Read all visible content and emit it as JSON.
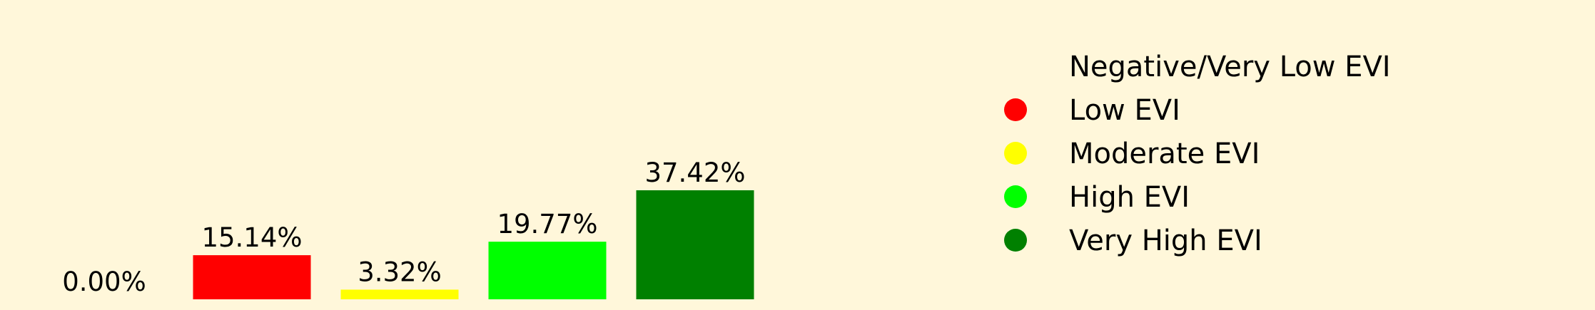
{
  "chart_data": {
    "type": "bar",
    "categories": [
      "Negative/Very Low EVI",
      "Low EVI",
      "Moderate EVI",
      "High EVI",
      "Very High EVI"
    ],
    "values": [
      0.0,
      15.14,
      3.32,
      19.77,
      37.42
    ],
    "data_labels": [
      "0.00%",
      "15.14%",
      "3.32%",
      "19.77%",
      "37.42%"
    ],
    "colors": [
      "#fff7da",
      "#ff0000",
      "#ffff00",
      "#00ff00",
      "#008000"
    ],
    "title": "",
    "xlabel": "",
    "ylabel": "",
    "ylim": [
      0,
      37.42
    ],
    "grid": false,
    "axes_visible": false,
    "legend": {
      "placement": "right",
      "entries": [
        "Negative/Very Low EVI",
        "Low EVI",
        "Moderate EVI",
        "High EVI",
        "Very High EVI"
      ]
    }
  }
}
